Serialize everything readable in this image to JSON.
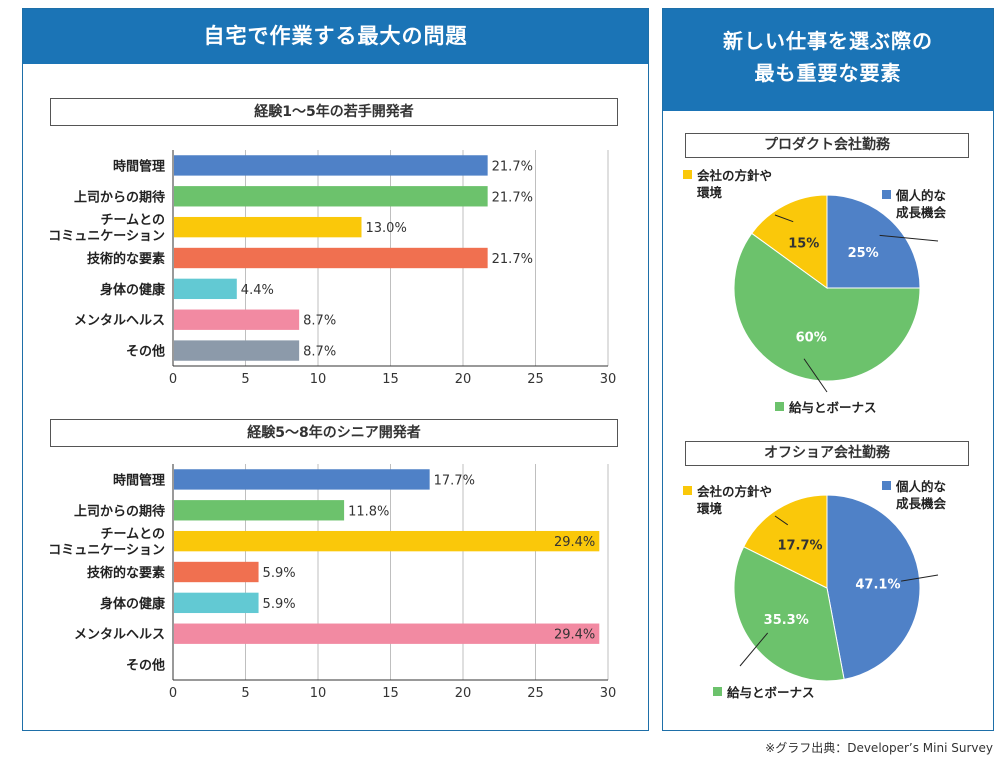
{
  "left": {
    "title": "自宅で作業する最大の問題",
    "chart1_title": "経験1～5年の若手開発者",
    "chart2_title": "経験5～8年のシニア開発者"
  },
  "right": {
    "title_line1": "新しい仕事を選ぶ際の",
    "title_line2": "最も重要な要素",
    "pie1_title": "プロダクト会社勤務",
    "pie2_title": "オフショア会社勤務"
  },
  "source": "※グラフ出典：Developer’s Mini Survey",
  "colors": {
    "header": "#1b74b6",
    "blue": "#4f81c7",
    "green": "#6cc26c",
    "yellow": "#fac80a",
    "orange": "#f07050",
    "cyan": "#62c9d3",
    "pink": "#f28aa2",
    "gray": "#8c9aaa"
  },
  "chart_data": [
    {
      "type": "bar",
      "orientation": "horizontal",
      "title": "経験1～5年の若手開発者",
      "categories": [
        [
          "時間管理"
        ],
        [
          "上司からの期待"
        ],
        [
          "チームとの",
          "コミュニケーション"
        ],
        [
          "技術的な要素"
        ],
        [
          "身体の健康"
        ],
        [
          "メンタルヘルス"
        ],
        [
          "その他"
        ]
      ],
      "values": [
        21.7,
        21.7,
        13.0,
        21.7,
        4.4,
        8.7,
        8.7
      ],
      "labels": [
        "21.7%",
        "21.7%",
        "13.0%",
        "21.7%",
        "4.4%",
        "8.7%",
        "8.7%"
      ],
      "label_inside": [
        false,
        false,
        false,
        false,
        false,
        false,
        false
      ],
      "bar_colors": [
        "#4f81c7",
        "#6cc26c",
        "#fac80a",
        "#f07050",
        "#62c9d3",
        "#f28aa2",
        "#8c9aaa"
      ],
      "xlim": [
        0,
        30
      ],
      "xticks": [
        0,
        5,
        10,
        15,
        20,
        25,
        30
      ],
      "grid": true
    },
    {
      "type": "bar",
      "orientation": "horizontal",
      "title": "経験5～8年のシニア開発者",
      "categories": [
        [
          "時間管理"
        ],
        [
          "上司からの期待"
        ],
        [
          "チームとの",
          "コミュニケーション"
        ],
        [
          "技術的な要素"
        ],
        [
          "身体の健康"
        ],
        [
          "メンタルヘルス"
        ],
        [
          "その他"
        ]
      ],
      "values": [
        17.7,
        11.8,
        29.4,
        5.9,
        5.9,
        29.4,
        0
      ],
      "labels": [
        "17.7%",
        "11.8%",
        "29.4%",
        "5.9%",
        "5.9%",
        "29.4%",
        ""
      ],
      "label_inside": [
        false,
        false,
        true,
        false,
        false,
        true,
        false
      ],
      "bar_colors": [
        "#4f81c7",
        "#6cc26c",
        "#fac80a",
        "#f07050",
        "#62c9d3",
        "#f28aa2",
        "#8c9aaa"
      ],
      "xlim": [
        0,
        30
      ],
      "xticks": [
        0,
        5,
        10,
        15,
        20,
        25,
        30
      ],
      "grid": true
    },
    {
      "type": "pie",
      "title": "プロダクト会社勤務",
      "slices": [
        {
          "name": [
            "個人的な",
            "成長機会"
          ],
          "value": 25,
          "label": "25%",
          "color": "#4f81c7",
          "label_color": "#ffffff"
        },
        {
          "name": [
            "給与とボーナス"
          ],
          "value": 60,
          "label": "60%",
          "color": "#6cc26c",
          "label_color": "#ffffff"
        },
        {
          "name": [
            "会社の方針や",
            "環境"
          ],
          "value": 15,
          "label": "15%",
          "color": "#fac80a",
          "label_color": "#333333"
        }
      ]
    },
    {
      "type": "pie",
      "title": "オフショア会社勤務",
      "slices": [
        {
          "name": [
            "個人的な",
            "成長機会"
          ],
          "value": 47.1,
          "label": "47.1%",
          "color": "#4f81c7",
          "label_color": "#ffffff"
        },
        {
          "name": [
            "給与とボーナス"
          ],
          "value": 35.3,
          "label": "35.3%",
          "color": "#6cc26c",
          "label_color": "#ffffff"
        },
        {
          "name": [
            "会社の方針や",
            "環境"
          ],
          "value": 17.7,
          "label": "17.7%",
          "color": "#fac80a",
          "label_color": "#333333"
        }
      ]
    }
  ]
}
